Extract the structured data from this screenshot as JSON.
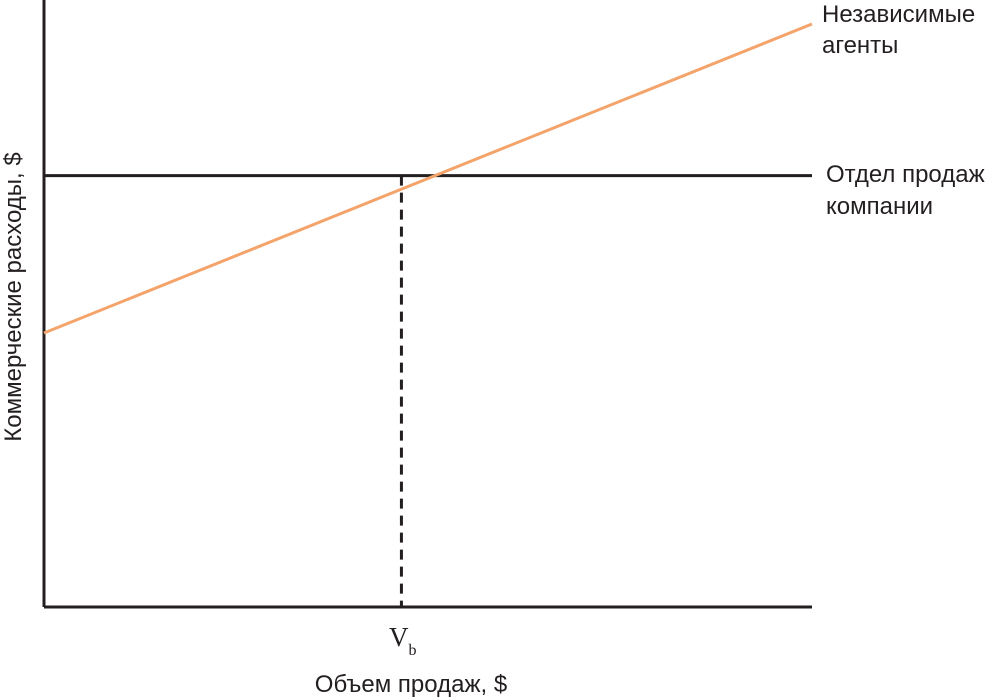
{
  "chart_data": {
    "type": "line",
    "xlabel": "Объем продаж, $",
    "ylabel": "Коммерческие расходы, $",
    "x_tick": {
      "main": "V",
      "sub": "b"
    },
    "xlim": [
      0,
      1
    ],
    "ylim": [
      0,
      1
    ],
    "grid": false,
    "series": [
      {
        "name_lines": [
          "Независимые",
          "агенты"
        ],
        "color": "#f4a46b",
        "x": [
          0,
          1
        ],
        "y": [
          0.47,
          1.0
        ]
      },
      {
        "name_lines": [
          "Отдел продаж",
          "компании"
        ],
        "color": "#231f20",
        "x": [
          0,
          1
        ],
        "y": [
          0.74,
          0.74
        ]
      }
    ],
    "marker": {
      "x": 0.4654,
      "style": "dashed"
    }
  }
}
